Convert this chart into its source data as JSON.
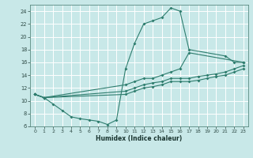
{
  "bg_color": "#c8e8e8",
  "grid_color": "#ffffff",
  "line_color": "#2e7d6e",
  "xlabel": "Humidex (Indice chaleur)",
  "xlim": [
    -0.5,
    23.5
  ],
  "ylim": [
    6,
    25
  ],
  "yticks": [
    6,
    8,
    10,
    12,
    14,
    16,
    18,
    20,
    22,
    24
  ],
  "xticks": [
    0,
    1,
    2,
    3,
    4,
    5,
    6,
    7,
    8,
    9,
    10,
    11,
    12,
    13,
    14,
    15,
    16,
    17,
    18,
    19,
    20,
    21,
    22,
    23
  ],
  "series1_x": [
    0,
    1,
    2,
    3,
    4,
    5,
    6,
    7,
    8,
    9,
    10,
    11,
    12,
    13,
    14,
    15,
    16,
    17,
    21,
    22,
    23
  ],
  "series1_y": [
    11.0,
    10.5,
    9.5,
    8.5,
    7.5,
    7.2,
    7.0,
    6.8,
    6.3,
    7.0,
    15.0,
    19.0,
    22.0,
    22.5,
    23.0,
    24.5,
    24.0,
    18.0,
    17.0,
    16.0,
    16.0
  ],
  "series2_x": [
    0,
    1,
    10,
    11,
    12,
    13,
    14,
    15,
    16,
    17,
    23
  ],
  "series2_y": [
    11.0,
    10.5,
    12.5,
    13.0,
    13.5,
    13.5,
    14.0,
    14.5,
    15.0,
    17.5,
    16.0
  ],
  "series3_x": [
    0,
    1,
    10,
    11,
    12,
    13,
    14,
    15,
    16,
    17,
    18,
    19,
    20,
    21,
    22,
    23
  ],
  "series3_y": [
    11.0,
    10.5,
    11.5,
    12.0,
    12.5,
    12.8,
    13.0,
    13.5,
    13.5,
    13.5,
    13.8,
    14.0,
    14.2,
    14.5,
    15.0,
    15.5
  ],
  "series4_x": [
    0,
    1,
    10,
    11,
    12,
    13,
    14,
    15,
    16,
    17,
    18,
    19,
    20,
    21,
    22,
    23
  ],
  "series4_y": [
    11.0,
    10.5,
    11.0,
    11.5,
    12.0,
    12.2,
    12.5,
    13.0,
    13.0,
    13.0,
    13.2,
    13.5,
    13.8,
    14.0,
    14.5,
    15.0
  ]
}
